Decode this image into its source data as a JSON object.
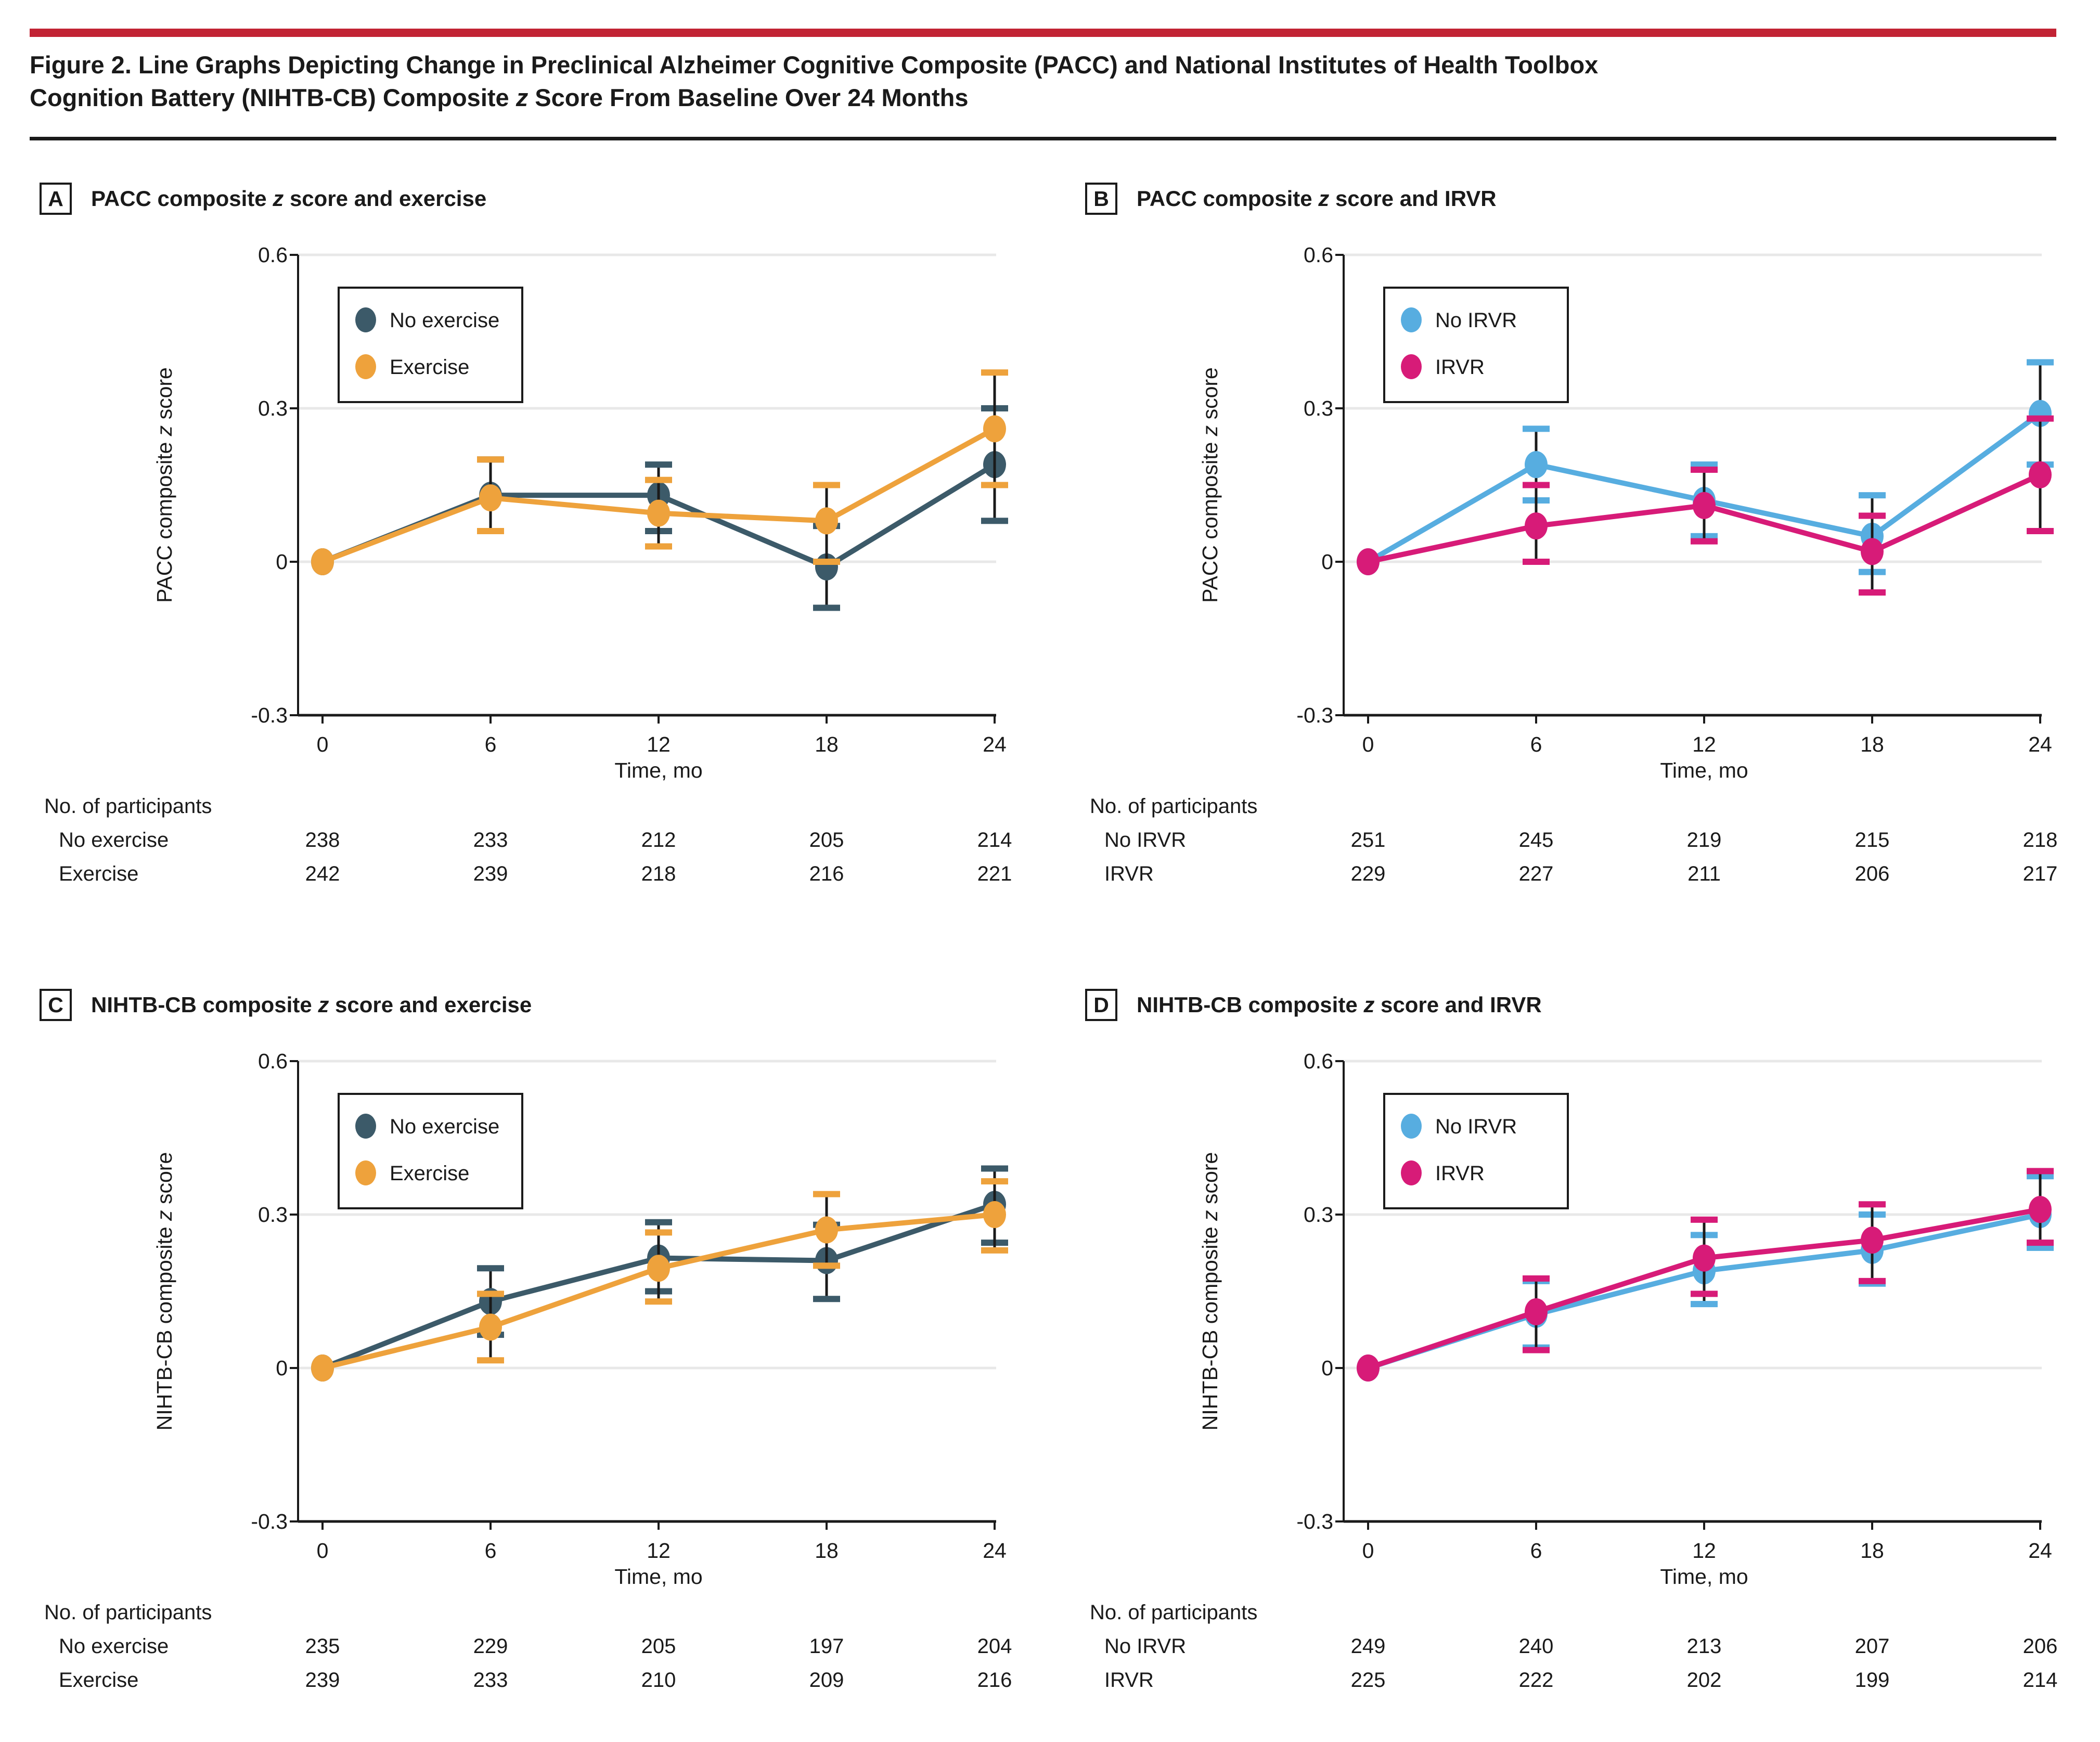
{
  "figure": {
    "title_line1": "Figure 2. Line Graphs Depicting Change in Preclinical Alzheimer Cognitive Composite (PACC) and National Institutes of Health Toolbox",
    "title_line2": "Cognition Battery (NIHTB-CB) Composite z Score From Baseline Over 24 Months"
  },
  "colors": {
    "accent_bar": "#C22334",
    "axis": "#1A1A1A",
    "grid": "#E8E8E8",
    "error_line": "#1A1A1A",
    "no_exercise": "#3C5A69",
    "exercise": "#EEA23C",
    "no_irvr": "#57ADE0",
    "irvr": "#D71B78"
  },
  "x_axis": {
    "label": "Time, mo",
    "ticks": [
      "0",
      "6",
      "12",
      "18",
      "24"
    ]
  },
  "y_axis": {
    "tick_labels": [
      "0.6",
      "0.3",
      "0",
      "-0.3"
    ],
    "tick_values": [
      0.6,
      0.3,
      0,
      -0.3
    ],
    "range": [
      -0.3,
      0.6
    ]
  },
  "participants_header": "No. of participants",
  "chart_data": [
    {
      "type": "line",
      "letter": "A",
      "title": "PACC composite z score and exercise",
      "ylabel": "PACC composite z score",
      "xlabel": "Time, mo",
      "x": [
        0,
        6,
        12,
        18,
        24
      ],
      "ylim": [
        -0.3,
        0.6
      ],
      "legend_position": "upper-left-inside",
      "grid": "horizontal",
      "series": [
        {
          "name": "No exercise",
          "color_key": "no_exercise",
          "values": [
            0,
            0.13,
            0.13,
            -0.01,
            0.19
          ],
          "err_lo": [
            null,
            0.06,
            0.06,
            -0.09,
            0.08
          ],
          "err_hi": [
            null,
            0.2,
            0.19,
            0.07,
            0.3
          ]
        },
        {
          "name": "Exercise",
          "color_key": "exercise",
          "values": [
            0,
            0.125,
            0.095,
            0.08,
            0.26
          ],
          "err_lo": [
            null,
            0.06,
            0.03,
            0.0,
            0.15
          ],
          "err_hi": [
            null,
            0.2,
            0.16,
            0.15,
            0.37
          ]
        }
      ],
      "participants": [
        {
          "label": "No exercise",
          "counts": [
            238,
            233,
            212,
            205,
            214
          ]
        },
        {
          "label": "Exercise",
          "counts": [
            242,
            239,
            218,
            216,
            221
          ]
        }
      ]
    },
    {
      "type": "line",
      "letter": "B",
      "title": "PACC composite z score and IRVR",
      "ylabel": "PACC composite z score",
      "xlabel": "Time, mo",
      "x": [
        0,
        6,
        12,
        18,
        24
      ],
      "ylim": [
        -0.3,
        0.6
      ],
      "legend_position": "upper-left-inside",
      "grid": "horizontal",
      "series": [
        {
          "name": "No IRVR",
          "color_key": "no_irvr",
          "values": [
            0,
            0.19,
            0.12,
            0.05,
            0.29
          ],
          "err_lo": [
            null,
            0.12,
            0.05,
            -0.02,
            0.19
          ],
          "err_hi": [
            null,
            0.26,
            0.19,
            0.13,
            0.39
          ]
        },
        {
          "name": "IRVR",
          "color_key": "irvr",
          "values": [
            0,
            0.07,
            0.11,
            0.02,
            0.17
          ],
          "err_lo": [
            null,
            0.0,
            0.04,
            -0.06,
            0.06
          ],
          "err_hi": [
            null,
            0.15,
            0.18,
            0.09,
            0.28
          ]
        }
      ],
      "participants": [
        {
          "label": "No IRVR",
          "counts": [
            251,
            245,
            219,
            215,
            218
          ]
        },
        {
          "label": "IRVR",
          "counts": [
            229,
            227,
            211,
            206,
            217
          ]
        }
      ]
    },
    {
      "type": "line",
      "letter": "C",
      "title": "NIHTB-CB composite z score and exercise",
      "ylabel": "NIHTB-CB composite z score",
      "xlabel": "Time, mo",
      "x": [
        0,
        6,
        12,
        18,
        24
      ],
      "ylim": [
        -0.3,
        0.6
      ],
      "legend_position": "upper-left-inside",
      "grid": "horizontal",
      "series": [
        {
          "name": "No exercise",
          "color_key": "no_exercise",
          "values": [
            0,
            0.13,
            0.215,
            0.21,
            0.32
          ],
          "err_lo": [
            null,
            0.065,
            0.15,
            0.135,
            0.245
          ],
          "err_hi": [
            null,
            0.195,
            0.285,
            0.28,
            0.39
          ]
        },
        {
          "name": "Exercise",
          "color_key": "exercise",
          "values": [
            0,
            0.08,
            0.195,
            0.27,
            0.3
          ],
          "err_lo": [
            null,
            0.015,
            0.13,
            0.2,
            0.23
          ],
          "err_hi": [
            null,
            0.145,
            0.265,
            0.34,
            0.365
          ]
        }
      ],
      "participants": [
        {
          "label": "No exercise",
          "counts": [
            235,
            229,
            205,
            197,
            204
          ]
        },
        {
          "label": "Exercise",
          "counts": [
            239,
            233,
            210,
            209,
            216
          ]
        }
      ]
    },
    {
      "type": "line",
      "letter": "D",
      "title": "NIHTB-CB composite z score and IRVR",
      "ylabel": "NIHTB-CB composite z score",
      "xlabel": "Time, mo",
      "x": [
        0,
        6,
        12,
        18,
        24
      ],
      "ylim": [
        -0.3,
        0.6
      ],
      "legend_position": "upper-left-inside",
      "grid": "horizontal",
      "series": [
        {
          "name": "No IRVR",
          "color_key": "no_irvr",
          "values": [
            0,
            0.105,
            0.19,
            0.23,
            0.3
          ],
          "err_lo": [
            null,
            0.04,
            0.125,
            0.165,
            0.235
          ],
          "err_hi": [
            null,
            0.17,
            0.26,
            0.3,
            0.375
          ]
        },
        {
          "name": "IRVR",
          "color_key": "irvr",
          "values": [
            0,
            0.11,
            0.215,
            0.25,
            0.31
          ],
          "err_lo": [
            null,
            0.035,
            0.145,
            0.17,
            0.245
          ],
          "err_hi": [
            null,
            0.175,
            0.29,
            0.32,
            0.385
          ]
        }
      ],
      "participants": [
        {
          "label": "No IRVR",
          "counts": [
            249,
            240,
            213,
            207,
            206
          ]
        },
        {
          "label": "IRVR",
          "counts": [
            225,
            222,
            202,
            199,
            214
          ]
        }
      ]
    }
  ]
}
